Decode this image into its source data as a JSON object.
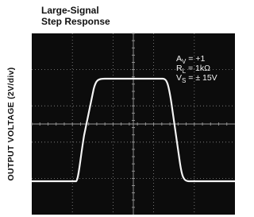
{
  "header": {
    "title_line1": "Large-Signal",
    "title_line2": "Step Response"
  },
  "y_label": "OUTPUT VOLTAGE (2V/div)",
  "annotations": [
    {
      "symbol": "A",
      "sub": "V",
      "text": " = +1"
    },
    {
      "symbol": "R",
      "sub": "L",
      "text": " = 1kΩ"
    },
    {
      "symbol": "V",
      "sub": "S",
      "text": " = ± 15V"
    }
  ]
}
